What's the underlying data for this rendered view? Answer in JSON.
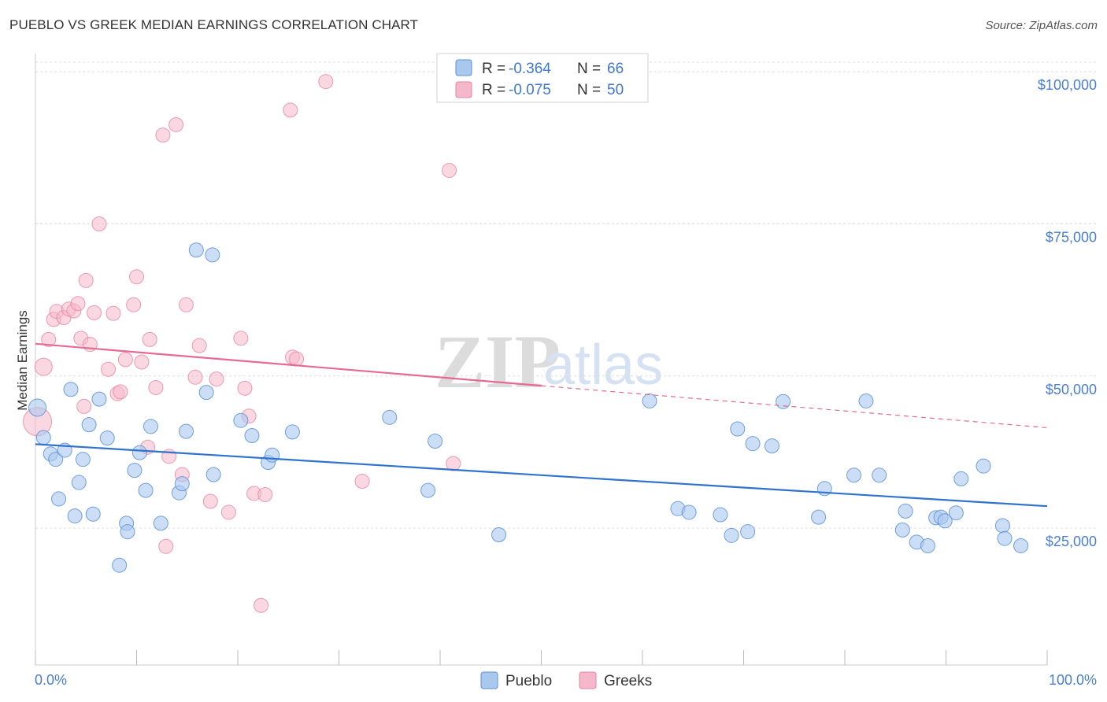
{
  "title": "PUEBLO VS GREEK MEDIAN EARNINGS CORRELATION CHART",
  "source": "Source: ZipAtlas.com",
  "watermark": {
    "zip": "ZIP",
    "atlas": "atlas"
  },
  "colors": {
    "pueblo_fill": "#aac8ee",
    "pueblo_stroke": "#5b8fd6",
    "pueblo_line": "#2f72cf",
    "greeks_fill": "#f5b8cb",
    "greeks_stroke": "#e883a4",
    "greeks_line": "#e66a92",
    "grid": "#dddddd",
    "axis_text": "#4a7fd0"
  },
  "legend": {
    "rows": [
      {
        "r_label": "R = ",
        "r_value": "-0.364",
        "n_label": "N = ",
        "n_value": "66"
      },
      {
        "r_label": "R = ",
        "r_value": "-0.075",
        "n_label": "N = ",
        "n_value": "50"
      }
    ]
  },
  "bottom_legend": [
    "Pueblo",
    "Greeks"
  ],
  "chart_data": {
    "type": "scatter",
    "title": "PUEBLO VS GREEK MEDIAN EARNINGS CORRELATION CHART",
    "xlabel": "",
    "ylabel": "Median Earnings",
    "xlim": [
      0,
      100
    ],
    "ylim": [
      2500,
      103000
    ],
    "x_tick_labels": [
      "0.0%",
      "100.0%"
    ],
    "y_ticks": [
      25000,
      50000,
      75000,
      100000
    ],
    "y_tick_labels": [
      "$25,000",
      "$50,000",
      "$75,000",
      "$100,000"
    ],
    "grid": true,
    "legend_position": "top-center",
    "series": [
      {
        "name": "Pueblo",
        "r": -0.364,
        "n": 66,
        "trend": {
          "x": [
            0,
            100
          ],
          "y": [
            38800,
            28600
          ]
        },
        "points": [
          [
            0.2,
            44800
          ],
          [
            0.8,
            39900
          ],
          [
            1.5,
            37200
          ],
          [
            2.0,
            36300
          ],
          [
            2.3,
            29800
          ],
          [
            2.9,
            37800
          ],
          [
            3.5,
            47800
          ],
          [
            3.9,
            27000
          ],
          [
            4.3,
            32500
          ],
          [
            4.7,
            36300
          ],
          [
            5.3,
            42000
          ],
          [
            5.7,
            27300
          ],
          [
            6.3,
            46200
          ],
          [
            7.1,
            39800
          ],
          [
            8.3,
            18900
          ],
          [
            9.0,
            25800
          ],
          [
            9.1,
            24400
          ],
          [
            9.8,
            34500
          ],
          [
            10.3,
            37400
          ],
          [
            10.9,
            31200
          ],
          [
            11.4,
            41700
          ],
          [
            12.4,
            25800
          ],
          [
            14.2,
            30800
          ],
          [
            14.5,
            32300
          ],
          [
            14.9,
            40900
          ],
          [
            15.9,
            70700
          ],
          [
            16.9,
            47300
          ],
          [
            17.5,
            69900
          ],
          [
            17.6,
            33800
          ],
          [
            20.3,
            42700
          ],
          [
            21.4,
            40200
          ],
          [
            23.0,
            35800
          ],
          [
            23.4,
            37000
          ],
          [
            25.4,
            40800
          ],
          [
            35.0,
            43200
          ],
          [
            39.5,
            39300
          ],
          [
            38.8,
            31200
          ],
          [
            45.8,
            23900
          ],
          [
            60.7,
            45900
          ],
          [
            63.5,
            28200
          ],
          [
            64.6,
            27600
          ],
          [
            67.7,
            27200
          ],
          [
            68.8,
            23800
          ],
          [
            69.4,
            41300
          ],
          [
            70.4,
            24400
          ],
          [
            70.9,
            38900
          ],
          [
            72.8,
            38500
          ],
          [
            73.9,
            45800
          ],
          [
            77.4,
            26800
          ],
          [
            78.0,
            31500
          ],
          [
            80.9,
            33700
          ],
          [
            82.1,
            45900
          ],
          [
            83.4,
            33700
          ],
          [
            85.7,
            24700
          ],
          [
            86.0,
            27800
          ],
          [
            87.1,
            22700
          ],
          [
            88.2,
            22100
          ],
          [
            89.0,
            26700
          ],
          [
            89.5,
            26800
          ],
          [
            89.9,
            26200
          ],
          [
            91.0,
            27500
          ],
          [
            91.5,
            33100
          ],
          [
            93.7,
            35200
          ],
          [
            95.6,
            25400
          ],
          [
            95.8,
            23300
          ],
          [
            97.4,
            22100
          ]
        ]
      },
      {
        "name": "Greeks",
        "r": -0.075,
        "n": 50,
        "trend": {
          "x": [
            0,
            100
          ],
          "y": [
            55300,
            41500
          ]
        },
        "trend_solid_until_x": 50,
        "points": [
          [
            0.2,
            42500
          ],
          [
            0.8,
            51500
          ],
          [
            1.3,
            56000
          ],
          [
            1.8,
            59300
          ],
          [
            2.1,
            60600
          ],
          [
            2.8,
            59600
          ],
          [
            3.3,
            61000
          ],
          [
            3.8,
            60700
          ],
          [
            4.2,
            61900
          ],
          [
            4.5,
            56200
          ],
          [
            4.8,
            45000
          ],
          [
            5.0,
            65700
          ],
          [
            5.4,
            55200
          ],
          [
            5.8,
            60400
          ],
          [
            6.3,
            75000
          ],
          [
            7.2,
            51100
          ],
          [
            7.7,
            60300
          ],
          [
            8.1,
            47100
          ],
          [
            8.4,
            47400
          ],
          [
            8.9,
            52700
          ],
          [
            9.7,
            61700
          ],
          [
            10.0,
            66300
          ],
          [
            10.5,
            52300
          ],
          [
            11.1,
            38300
          ],
          [
            11.3,
            56000
          ],
          [
            11.9,
            48100
          ],
          [
            12.6,
            89600
          ],
          [
            12.9,
            22000
          ],
          [
            13.2,
            36800
          ],
          [
            13.9,
            91300
          ],
          [
            14.5,
            33800
          ],
          [
            14.9,
            61700
          ],
          [
            15.8,
            49800
          ],
          [
            16.2,
            55000
          ],
          [
            17.3,
            29400
          ],
          [
            17.9,
            49500
          ],
          [
            19.1,
            27600
          ],
          [
            20.3,
            56200
          ],
          [
            20.7,
            48000
          ],
          [
            21.1,
            43400
          ],
          [
            21.6,
            30700
          ],
          [
            22.3,
            12300
          ],
          [
            22.7,
            30500
          ],
          [
            25.2,
            93700
          ],
          [
            25.4,
            53100
          ],
          [
            25.8,
            52800
          ],
          [
            28.7,
            98400
          ],
          [
            32.3,
            32700
          ],
          [
            40.9,
            83800
          ],
          [
            41.3,
            35600
          ]
        ]
      }
    ]
  }
}
